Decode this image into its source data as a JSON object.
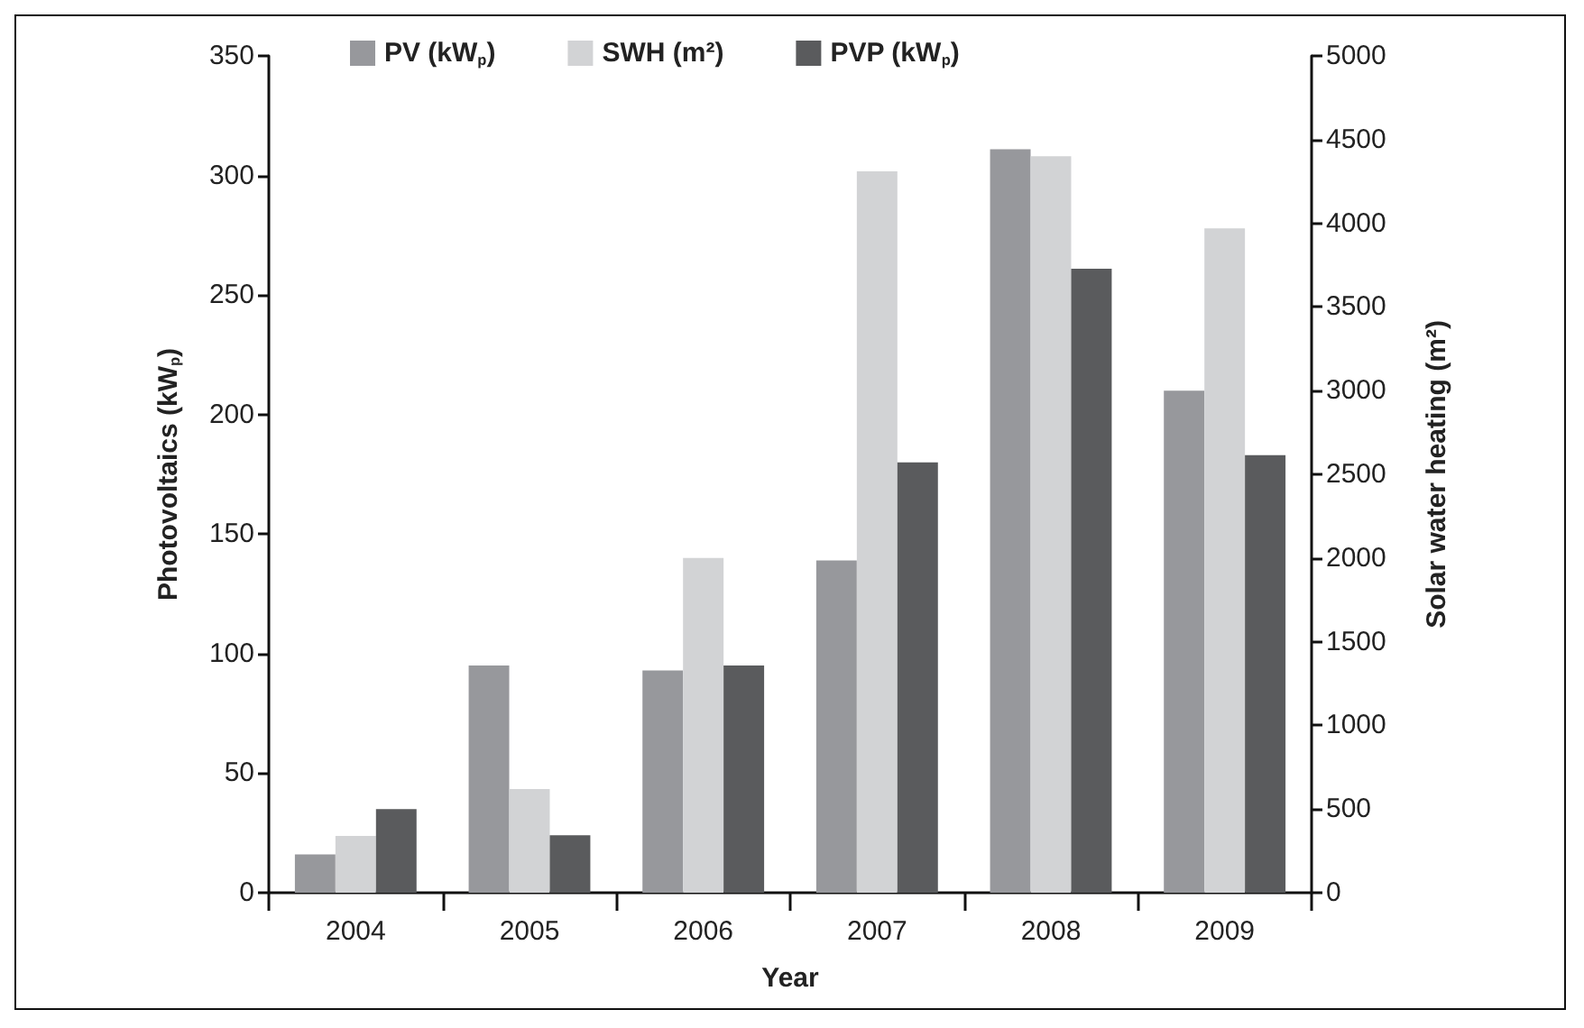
{
  "chart_data": {
    "type": "bar",
    "xlabel": "Year",
    "ylabel": "Photovoltaics (kW$_{p}$)",
    "y2label": "Solar water heating (m²)",
    "categories": [
      "2004",
      "2005",
      "2006",
      "2007",
      "2008",
      "2009"
    ],
    "series": [
      {
        "name": "PV (kW$_{p}$)",
        "color": "#97989c",
        "values": [
          16,
          95,
          93,
          139,
          311,
          210
        ]
      },
      {
        "name": "SWH (m²)",
        "color": "#d2d3d5",
        "axis": "y2",
        "values": [
          340,
          620,
          2000,
          4310,
          4400,
          3970
        ]
      },
      {
        "name": "PVP (kW$_{p}$)",
        "color": "#5a5b5d",
        "values": [
          35,
          24,
          95,
          180,
          261,
          183
        ]
      }
    ],
    "ylim": [
      0,
      350
    ],
    "yticks": [
      0,
      50,
      100,
      150,
      200,
      250,
      300,
      350
    ],
    "y2lim": [
      0,
      5000
    ],
    "y2ticks": [
      0,
      500,
      1000,
      1500,
      2000,
      2500,
      3000,
      3500,
      4000,
      4500,
      5000
    ],
    "grid": false,
    "legend": "top"
  }
}
